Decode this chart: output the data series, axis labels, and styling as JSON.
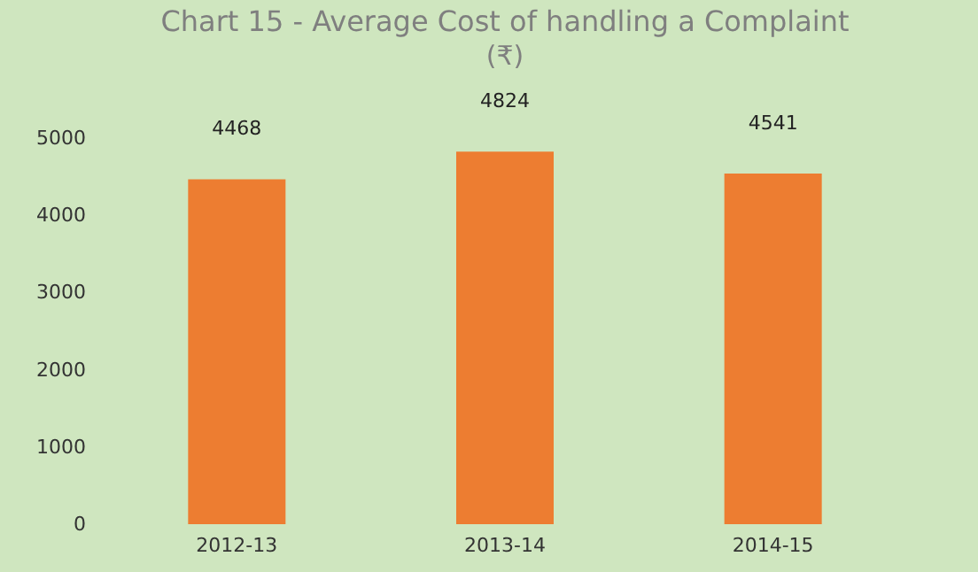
{
  "chart_data": {
    "type": "bar",
    "title": "Chart 15 - Average Cost of handling a Complaint",
    "subtitle": "(₹)",
    "categories": [
      "2012-13",
      "2013-14",
      "2014-15"
    ],
    "values": [
      4468,
      4824,
      4541
    ],
    "color": "#ed7d31",
    "ylim": [
      0,
      5000
    ],
    "yticks": [
      0,
      1000,
      2000,
      3000,
      4000,
      5000
    ],
    "data_labels": true,
    "grid": false
  }
}
